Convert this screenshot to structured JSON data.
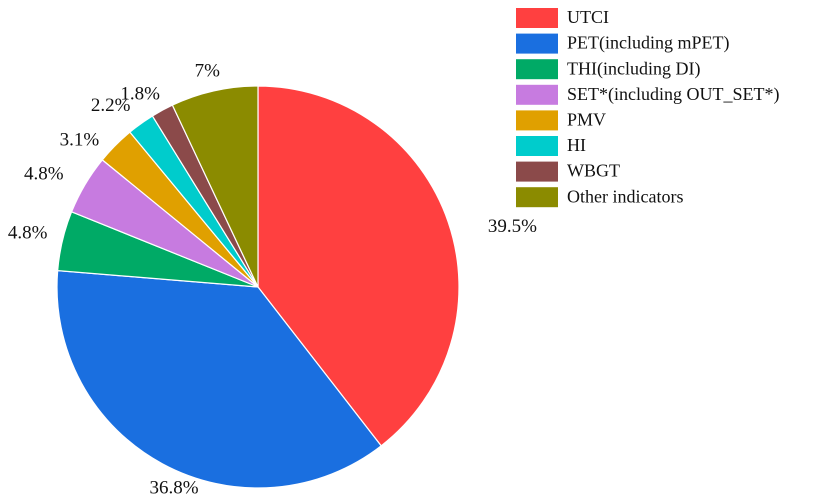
{
  "chart_data": {
    "type": "pie",
    "title": "",
    "slices": [
      {
        "label": "UTCI",
        "value": 39.5,
        "display": "39.5%",
        "color": "#FF4040"
      },
      {
        "label": "PET(including mPET)",
        "value": 36.8,
        "display": "36.8%",
        "color": "#1A6FE0"
      },
      {
        "label": "THI(including DI)",
        "value": 4.8,
        "display": "4.8%",
        "color": "#00AA66"
      },
      {
        "label": "SET*(including OUT_SET*)",
        "value": 4.8,
        "display": "4.8%",
        "color": "#C77BE0"
      },
      {
        "label": "PMV",
        "value": 3.1,
        "display": "3.1%",
        "color": "#E0A000"
      },
      {
        "label": "HI",
        "value": 2.2,
        "display": "2.2%",
        "color": "#00CCCC"
      },
      {
        "label": "WBGT",
        "value": 1.8,
        "display": "1.8%",
        "color": "#8B4A4A"
      },
      {
        "label": "Other indicators",
        "value": 7,
        "display": "7%",
        "color": "#8B8B00"
      }
    ],
    "legend_position": "top-right",
    "start_angle": "12 o'clock",
    "direction": "clockwise"
  }
}
